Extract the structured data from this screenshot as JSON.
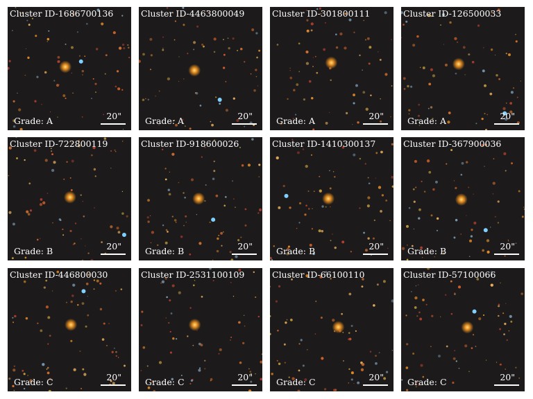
{
  "panels": [
    {
      "id": "Cluster ID-1686700136",
      "grade": "Grade: A",
      "scale": "20\""
    },
    {
      "id": "Cluster ID-4463800049",
      "grade": "Grade: A",
      "scale": "20\""
    },
    {
      "id": "Cluster ID-301800111",
      "grade": "Grade: A",
      "scale": "20\""
    },
    {
      "id": "Cluster ID-126500033",
      "grade": "Grade: A",
      "scale": "20\""
    },
    {
      "id": "Cluster ID-722800119",
      "grade": "Grade: B",
      "scale": "20\""
    },
    {
      "id": "Cluster ID-918600026",
      "grade": "Grade: B",
      "scale": "20\""
    },
    {
      "id": "Cluster ID-1410300137",
      "grade": "Grade: B",
      "scale": "20\""
    },
    {
      "id": "Cluster ID-367900036",
      "grade": "Grade: B",
      "scale": "20\""
    },
    {
      "id": "Cluster ID-446800030",
      "grade": "Grade: C",
      "scale": "20\""
    },
    {
      "id": "Cluster ID-2531100109",
      "grade": "Grade: C",
      "scale": "20\""
    },
    {
      "id": "Cluster ID-66100110",
      "grade": "Grade: C",
      "scale": "20\""
    },
    {
      "id": "Cluster ID-57100066",
      "grade": "Grade: C",
      "scale": "20\""
    }
  ]
}
